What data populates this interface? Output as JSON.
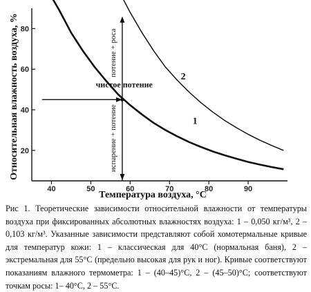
{
  "chart_data": {
    "type": "line",
    "xlabel": "Температура воздуха, °C",
    "ylabel": "Относительная влажность воздуха, %",
    "xlim": [
      35,
      100
    ],
    "ylim": [
      5,
      90
    ],
    "x_ticks": [
      40,
      50,
      60,
      70,
      80,
      90
    ],
    "y_ticks": [
      20,
      40,
      60,
      80
    ],
    "grid": false,
    "series": [
      {
        "name": "1",
        "x": [
          39,
          42,
          45,
          48,
          51,
          54,
          57,
          60,
          63,
          66,
          69,
          72,
          75,
          78,
          81,
          84,
          87,
          90,
          93,
          96,
          99
        ],
        "y": [
          99,
          89,
          78,
          69,
          61,
          54,
          47.5,
          42.3,
          37.7,
          33.5,
          30,
          26.9,
          24.1,
          21.7,
          19.5,
          17.6,
          15.9,
          14.3,
          13,
          11.8,
          10.7
        ]
      },
      {
        "name": "2",
        "x": [
          57,
          60,
          63,
          66,
          69,
          72,
          75,
          78,
          81,
          84,
          87,
          90,
          93,
          96,
          99
        ],
        "y": [
          99,
          88,
          78,
          69,
          61,
          54.5,
          48.7,
          43.5,
          38.9,
          34.8,
          31.2,
          27.9,
          25,
          22.4,
          20
        ]
      }
    ],
    "annotations": {
      "curve_label_1": "1",
      "curve_label_2": "2",
      "clean_sweat": "чистое потение",
      "sweat_dew": "потение + роса",
      "evap_sweat": "испарение + потение"
    }
  },
  "caption": "Рис 1. Теоретические зависимости относительной влажности от температуры воздуха при фиксированных абсолютных влажностях воздуха: 1 – 0,050 кг/м³, 2 – 0,103 кг/м³. Указанные зависимости представляют собой хомотермальные кривые для температур кожи: 1 – классическая для 40°C (нормальная баня), 2 – экстремальная для 55°C (предельно высокая для рук и ног). Кривые соответствуют показаниям влажного термометра: 1 – (40–45)°C, 2 – (45–50)°C; соответствуют точкам росы: 1– 40°C, 2 – 55°C."
}
